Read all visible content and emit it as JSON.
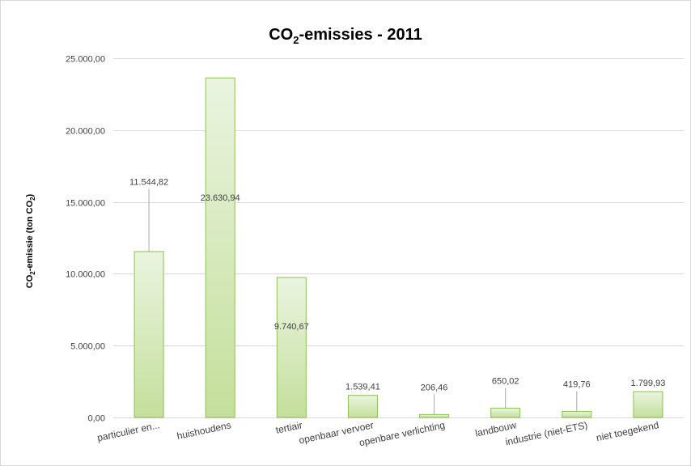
{
  "chart_data": {
    "type": "bar",
    "title_main": "CO",
    "title_sub": "2",
    "title_rest": "-emissies - 2011",
    "ylabel_main": "CO",
    "ylabel_sub": "2",
    "ylabel_mid": "-emissie (ton CO",
    "ylabel_sub2": "2",
    "ylabel_end": ")",
    "categories": [
      "particulier en...",
      "huishoudens",
      "tertiair",
      "openbaar vervoer",
      "openbare verlichting",
      "landbouw",
      "industrie (niet-ETS)",
      "niet toegekend"
    ],
    "values": [
      11544.82,
      23630.94,
      9740.67,
      1539.41,
      206.46,
      650.02,
      419.76,
      1799.93
    ],
    "value_labels": [
      "11.544,82",
      "23.630,94",
      "9.740,67",
      "1.539,41",
      "206,46",
      "650,02",
      "419,76",
      "1.799,93"
    ],
    "ylim": [
      0,
      25000
    ],
    "yticks": [
      0,
      5000,
      10000,
      15000,
      20000,
      25000
    ],
    "ytick_labels": [
      "0,00",
      "5.000,00",
      "10.000,00",
      "15.000,00",
      "20.000,00",
      "25.000,00"
    ],
    "grid": true,
    "colors": {
      "bar_top": "#eaf4e0",
      "bar_bottom": "#c4df9b",
      "bar_border": "#8cc152",
      "grid": "#d9d9d9",
      "leader": "#a6a6a6"
    }
  }
}
